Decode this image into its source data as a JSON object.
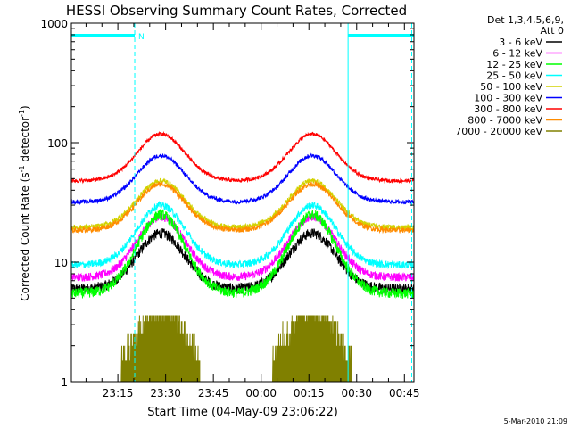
{
  "chart_data": {
    "type": "line",
    "title": "HESSI Observing Summary Count Rates, Corrected",
    "xlabel": "Start Time (04-May-09 23:06:22)",
    "ylabel": "Corrected Count Rate (s",
    "ylabel_sup": "-1",
    "ylabel_mid": " detector",
    "ylabel_close": ")",
    "yscale": "log",
    "ylim": [
      1,
      1000
    ],
    "xlim_minutes": [
      -14.6,
      93.0
    ],
    "x_ticks": [
      {
        "label": "23:15",
        "value": 0
      },
      {
        "label": "23:30",
        "value": 15
      },
      {
        "label": "23:45",
        "value": 30
      },
      {
        "label": "00:00",
        "value": 45
      },
      {
        "label": "00:15",
        "value": 60
      },
      {
        "label": "00:30",
        "value": 75
      },
      {
        "label": "00:45",
        "value": 90
      }
    ],
    "y_ticks": [
      {
        "label": "1",
        "value": 1
      },
      {
        "label": "10",
        "value": 10
      },
      {
        "label": "100",
        "value": 100
      },
      {
        "label": "1000",
        "value": 1000
      }
    ],
    "legend_header": [
      "Det 1,3,4,5,6,9,",
      "Att 0"
    ],
    "legend_position": "right",
    "series": [
      {
        "name": "3 - 6 keV",
        "color": "#000000",
        "base": 6,
        "peak": 17.5,
        "noise": 0.1
      },
      {
        "name": "6 - 12 keV",
        "color": "#ff00ff",
        "base": 7.5,
        "peak": 24,
        "noise": 0.08
      },
      {
        "name": "12 - 25 keV",
        "color": "#00ff00",
        "base": 5.5,
        "peak": 25,
        "noise": 0.1
      },
      {
        "name": "25 - 50 keV",
        "color": "#00ffff",
        "base": 9.5,
        "peak": 30,
        "noise": 0.07
      },
      {
        "name": "50 - 100 keV",
        "color": "#d2d200",
        "base": 19.5,
        "peak": 48,
        "noise": 0.05
      },
      {
        "name": "100 - 300 keV",
        "color": "#0000ff",
        "base": 32,
        "peak": 78,
        "noise": 0.04
      },
      {
        "name": "300 - 800 keV",
        "color": "#ff0000",
        "base": 48,
        "peak": 118,
        "noise": 0.035
      },
      {
        "name": "800 - 7000 keV",
        "color": "#ff8c00",
        "base": 18.5,
        "peak": 45,
        "noise": 0.05
      },
      {
        "name": "7000 - 20000 keV",
        "color": "#808000",
        "base": 1,
        "peak": 3.6,
        "noise": 0.0
      }
    ],
    "peak_centers_minutes": [
      13.5,
      61.0
    ],
    "baseline_minutes": [
      [
        -14.6,
        93.0
      ]
    ],
    "saa_bars": [
      {
        "from_minutes": -14.6,
        "to_minutes": 5.3,
        "label": "N"
      },
      {
        "from_minutes": 72.3,
        "to_minutes": 93.0,
        "label": ""
      }
    ],
    "vertical_lines_minutes": [
      5.3,
      92.3
    ],
    "footer": "5-Mar-2010 21:09"
  }
}
